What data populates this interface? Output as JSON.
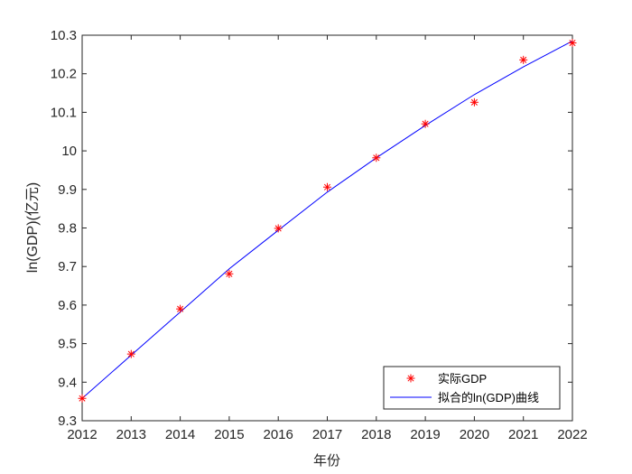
{
  "chart_data": {
    "type": "scatter",
    "xlabel": "年份",
    "ylabel": "ln(GDP)(亿元)",
    "xlim": [
      2012,
      2022
    ],
    "ylim": [
      9.3,
      10.3
    ],
    "x_ticks": [
      2012,
      2013,
      2014,
      2015,
      2016,
      2017,
      2018,
      2019,
      2020,
      2021,
      2022
    ],
    "y_ticks": [
      9.3,
      9.4,
      9.5,
      9.6,
      9.7,
      9.8,
      9.9,
      10,
      10.1,
      10.2,
      10.3
    ],
    "x_tick_labels": [
      "2012",
      "2013",
      "2014",
      "2015",
      "2016",
      "2017",
      "2018",
      "2019",
      "2020",
      "2021",
      "2022"
    ],
    "y_tick_labels": [
      "9.3",
      "9.4",
      "9.5",
      "9.6",
      "9.7",
      "9.8",
      "9.9",
      "10",
      "10.1",
      "10.2",
      "10.3"
    ],
    "grid": false,
    "legend_position": "bottom-right",
    "series": [
      {
        "name": "实际GDP",
        "kind": "scatter",
        "marker": "asterisk",
        "color": "#ff0000",
        "x": [
          2012,
          2013,
          2014,
          2015,
          2016,
          2017,
          2018,
          2019,
          2020,
          2021,
          2022
        ],
        "y": [
          9.358,
          9.473,
          9.59,
          9.681,
          9.799,
          9.906,
          9.982,
          10.07,
          10.126,
          10.236,
          10.28
        ]
      },
      {
        "name": "拟合的ln(GDP)曲线",
        "kind": "line",
        "color": "#0000ff",
        "x": [
          2012,
          2013,
          2014,
          2015,
          2016,
          2017,
          2018,
          2019,
          2020,
          2021,
          2022
        ],
        "y": [
          9.358,
          9.47,
          9.582,
          9.694,
          9.794,
          9.893,
          9.982,
          10.066,
          10.146,
          10.218,
          10.285
        ]
      }
    ]
  }
}
